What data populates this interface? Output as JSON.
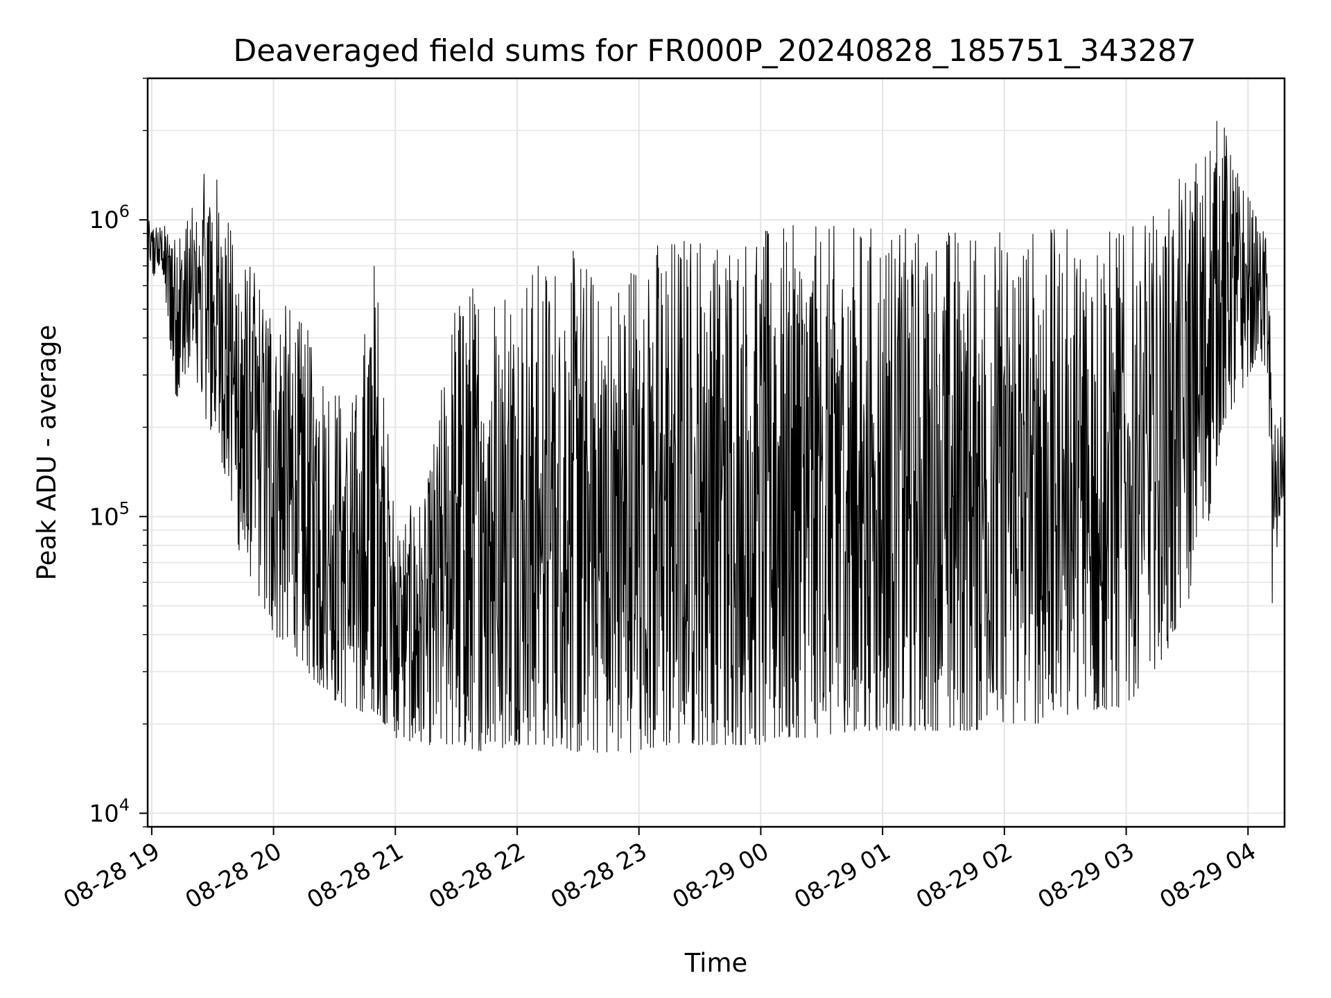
{
  "chart_data": {
    "type": "line",
    "title": "Deaveraged field sums for FR000P_20240828_185751_343287",
    "xlabel": "Time",
    "ylabel": "Peak ADU - average",
    "yscale": "log",
    "xlim": [
      "2024-08-28 18:58",
      "2024-08-29 04:18"
    ],
    "ylim": [
      9000,
      3000000
    ],
    "grid": true,
    "x_ticks": [
      "2024-08-28 19:00",
      "2024-08-28 20:00",
      "2024-08-28 21:00",
      "2024-08-28 22:00",
      "2024-08-28 23:00",
      "2024-08-29 00:00",
      "2024-08-29 01:00",
      "2024-08-29 02:00",
      "2024-08-29 03:00",
      "2024-08-29 04:00"
    ],
    "x_tick_labels": [
      "08-28 19",
      "08-28 20",
      "08-28 21",
      "08-28 22",
      "08-28 23",
      "08-29 00",
      "08-29 01",
      "08-29 02",
      "08-29 03",
      "08-29 04"
    ],
    "y_ticks": [
      10000,
      100000,
      1000000
    ],
    "y_tick_labels": [
      {
        "base": "10",
        "exp": "4"
      },
      {
        "base": "10",
        "exp": "5"
      },
      {
        "base": "10",
        "exp": "6"
      }
    ],
    "line_color": "#000000",
    "series": [
      {
        "x": [
          "2024-08-28 18:58",
          "2024-08-28 19:05",
          "2024-08-28 19:12",
          "2024-08-28 19:20",
          "2024-08-28 19:28",
          "2024-08-28 19:35",
          "2024-08-28 19:42",
          "2024-08-28 19:50",
          "2024-08-28 20:00",
          "2024-08-28 20:10",
          "2024-08-28 20:20",
          "2024-08-28 20:30",
          "2024-08-28 20:40",
          "2024-08-28 20:50",
          "2024-08-28 21:00",
          "2024-08-28 21:15",
          "2024-08-28 21:30",
          "2024-08-28 21:45",
          "2024-08-28 22:00",
          "2024-08-28 22:15",
          "2024-08-28 22:30",
          "2024-08-28 22:45",
          "2024-08-28 23:00",
          "2024-08-28 23:15",
          "2024-08-28 23:30",
          "2024-08-28 23:45",
          "2024-08-29 00:00",
          "2024-08-29 00:15",
          "2024-08-29 00:30",
          "2024-08-29 00:45",
          "2024-08-29 01:00",
          "2024-08-29 01:15",
          "2024-08-29 01:30",
          "2024-08-29 01:45",
          "2024-08-29 02:00",
          "2024-08-29 02:15",
          "2024-08-29 02:30",
          "2024-08-29 02:45",
          "2024-08-29 03:00",
          "2024-08-29 03:10",
          "2024-08-29 03:20",
          "2024-08-29 03:30",
          "2024-08-29 03:40",
          "2024-08-29 03:47",
          "2024-08-29 03:55",
          "2024-08-29 04:05",
          "2024-08-29 04:10",
          "2024-08-29 04:12",
          "2024-08-29 04:15",
          "2024-08-29 04:18"
        ],
        "low": [
          600000,
          700000,
          250000,
          300000,
          200000,
          150000,
          80000,
          60000,
          40000,
          35000,
          28000,
          24000,
          22000,
          22000,
          18000,
          17000,
          17000,
          16000,
          17000,
          17000,
          16000,
          16000,
          16000,
          17000,
          17000,
          17000,
          17000,
          18000,
          18000,
          19000,
          19000,
          19000,
          19000,
          19000,
          20000,
          20000,
          21000,
          22000,
          23000,
          28000,
          35000,
          50000,
          90000,
          200000,
          250000,
          350000,
          300000,
          40000,
          90000,
          100000
        ],
        "high": [
          1000000,
          950000,
          1000000,
          1100000,
          1600000,
          1300000,
          800000,
          700000,
          600000,
          500000,
          400000,
          300000,
          250000,
          800000,
          100000,
          120000,
          600000,
          650000,
          700000,
          750000,
          800000,
          600000,
          850000,
          900000,
          950000,
          950000,
          950000,
          960000,
          960000,
          970000,
          980000,
          970000,
          970000,
          960000,
          950000,
          950000,
          950000,
          950000,
          950000,
          1000000,
          1200000,
          1500000,
          2000000,
          2300000,
          1500000,
          1000000,
          900000,
          250000,
          200000,
          250000
        ]
      }
    ]
  }
}
